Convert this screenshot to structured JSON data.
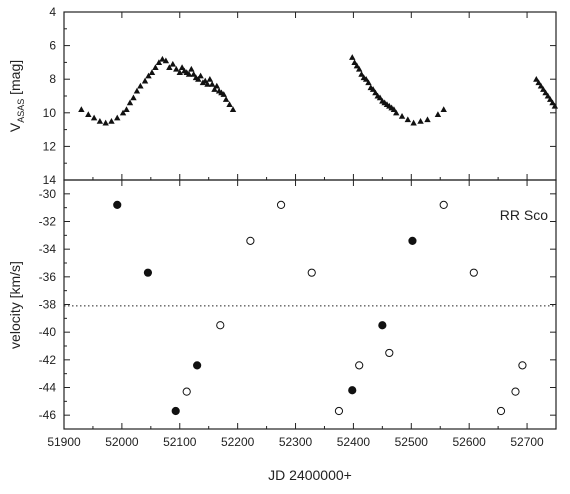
{
  "chart_data": [
    {
      "type": "scatter",
      "panel": "top",
      "ylabel_main": "V",
      "ylabel_sub": "ASAS",
      "ylabel_unit": " [mag]",
      "xlim": [
        51900,
        52750
      ],
      "ylim": [
        4,
        14
      ],
      "y_inverted": true,
      "yticks": [
        4,
        6,
        8,
        10,
        12,
        14
      ],
      "series": [
        {
          "marker": "filled-triangle",
          "x": [
            51930,
            51942,
            51952,
            51962,
            51972,
            51982,
            51992,
            52002,
            52008,
            52014,
            52020,
            52026,
            52032,
            52040,
            52046,
            52052,
            52058,
            52064,
            52070,
            52076,
            52082,
            52088,
            52094,
            52100,
            52104,
            52108,
            52112,
            52116,
            52120,
            52124,
            52128,
            52132,
            52136,
            52140,
            52144,
            52148,
            52152,
            52156,
            52160,
            52164,
            52168,
            52172,
            52176,
            52180,
            52186,
            52192,
            52398,
            52402,
            52406,
            52410,
            52414,
            52418,
            52422,
            52426,
            52430,
            52434,
            52438,
            52442,
            52446,
            52450,
            52454,
            52458,
            52462,
            52466,
            52470,
            52474,
            52484,
            52494,
            52504,
            52516,
            52528,
            52546,
            52556,
            52716,
            52720,
            52724,
            52728,
            52732,
            52736,
            52740,
            52744,
            52748
          ],
          "y": [
            9.8,
            10.1,
            10.3,
            10.5,
            10.6,
            10.5,
            10.3,
            10.0,
            9.8,
            9.4,
            9.1,
            8.7,
            8.4,
            8.1,
            7.8,
            7.6,
            7.3,
            7.0,
            6.8,
            6.9,
            7.3,
            7.1,
            7.4,
            7.6,
            7.3,
            7.5,
            7.6,
            7.7,
            7.4,
            7.7,
            7.9,
            8.0,
            7.8,
            8.2,
            8.1,
            8.3,
            8.0,
            8.3,
            8.6,
            8.4,
            8.7,
            8.8,
            8.9,
            9.2,
            9.5,
            9.8,
            6.7,
            7.0,
            7.2,
            7.4,
            7.7,
            7.9,
            8.0,
            8.2,
            8.5,
            8.6,
            8.8,
            9.0,
            9.1,
            9.3,
            9.4,
            9.5,
            9.6,
            9.7,
            9.8,
            10.0,
            10.2,
            10.4,
            10.6,
            10.5,
            10.4,
            10.1,
            9.8,
            8.0,
            8.2,
            8.4,
            8.6,
            8.8,
            9.0,
            9.2,
            9.4,
            9.6
          ]
        }
      ]
    },
    {
      "type": "scatter",
      "panel": "bottom",
      "annotation": "RR Sco",
      "xlabel": "JD 2400000+",
      "ylabel": "velocity [km/s]",
      "xlim": [
        51900,
        52750
      ],
      "ylim": [
        -47,
        -29
      ],
      "xticks": [
        51900,
        52000,
        52100,
        52200,
        52300,
        52400,
        52500,
        52600,
        52700
      ],
      "yticks": [
        -30,
        -32,
        -34,
        -36,
        -38,
        -40,
        -42,
        -44,
        -46
      ],
      "reference_line": {
        "y": -38.1,
        "style": "dotted"
      },
      "series": [
        {
          "marker": "filled-circle",
          "x": [
            51992,
            52045,
            52093,
            52130,
            52398,
            52450,
            52502
          ],
          "y": [
            -30.8,
            -35.7,
            -45.7,
            -42.4,
            -44.2,
            -39.5,
            -33.4
          ]
        },
        {
          "marker": "open-circle",
          "x": [
            52112,
            52170,
            52222,
            52275,
            52328,
            52375,
            52410,
            52462,
            52556,
            52608,
            52655,
            52680,
            52692
          ],
          "y": [
            -44.3,
            -39.5,
            -33.4,
            -30.8,
            -35.7,
            -45.7,
            -42.4,
            -41.5,
            -30.8,
            -35.7,
            -45.7,
            -44.3,
            -42.4
          ]
        }
      ]
    }
  ]
}
